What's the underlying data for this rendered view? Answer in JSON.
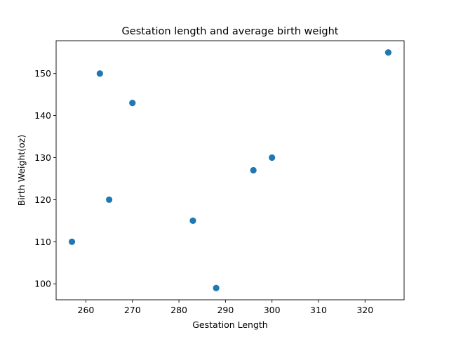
{
  "chart_data": {
    "type": "scatter",
    "title": "Gestation length and average birth weight",
    "xlabel": "Gestation Length",
    "ylabel": "Birth Weight(oz)",
    "xlim": [
      253.6,
      328.4
    ],
    "ylim": [
      96.2,
      157.8
    ],
    "xticks": [
      260,
      270,
      280,
      290,
      300,
      310,
      320
    ],
    "yticks": [
      100,
      110,
      120,
      130,
      140,
      150
    ],
    "grid": false,
    "marker_color": "#1f77b4",
    "series": [
      {
        "x": [
          257,
          263,
          265,
          270,
          283,
          288,
          296,
          300,
          325
        ],
        "y": [
          110,
          150,
          120,
          143,
          115,
          99,
          127,
          130,
          155
        ]
      }
    ]
  }
}
